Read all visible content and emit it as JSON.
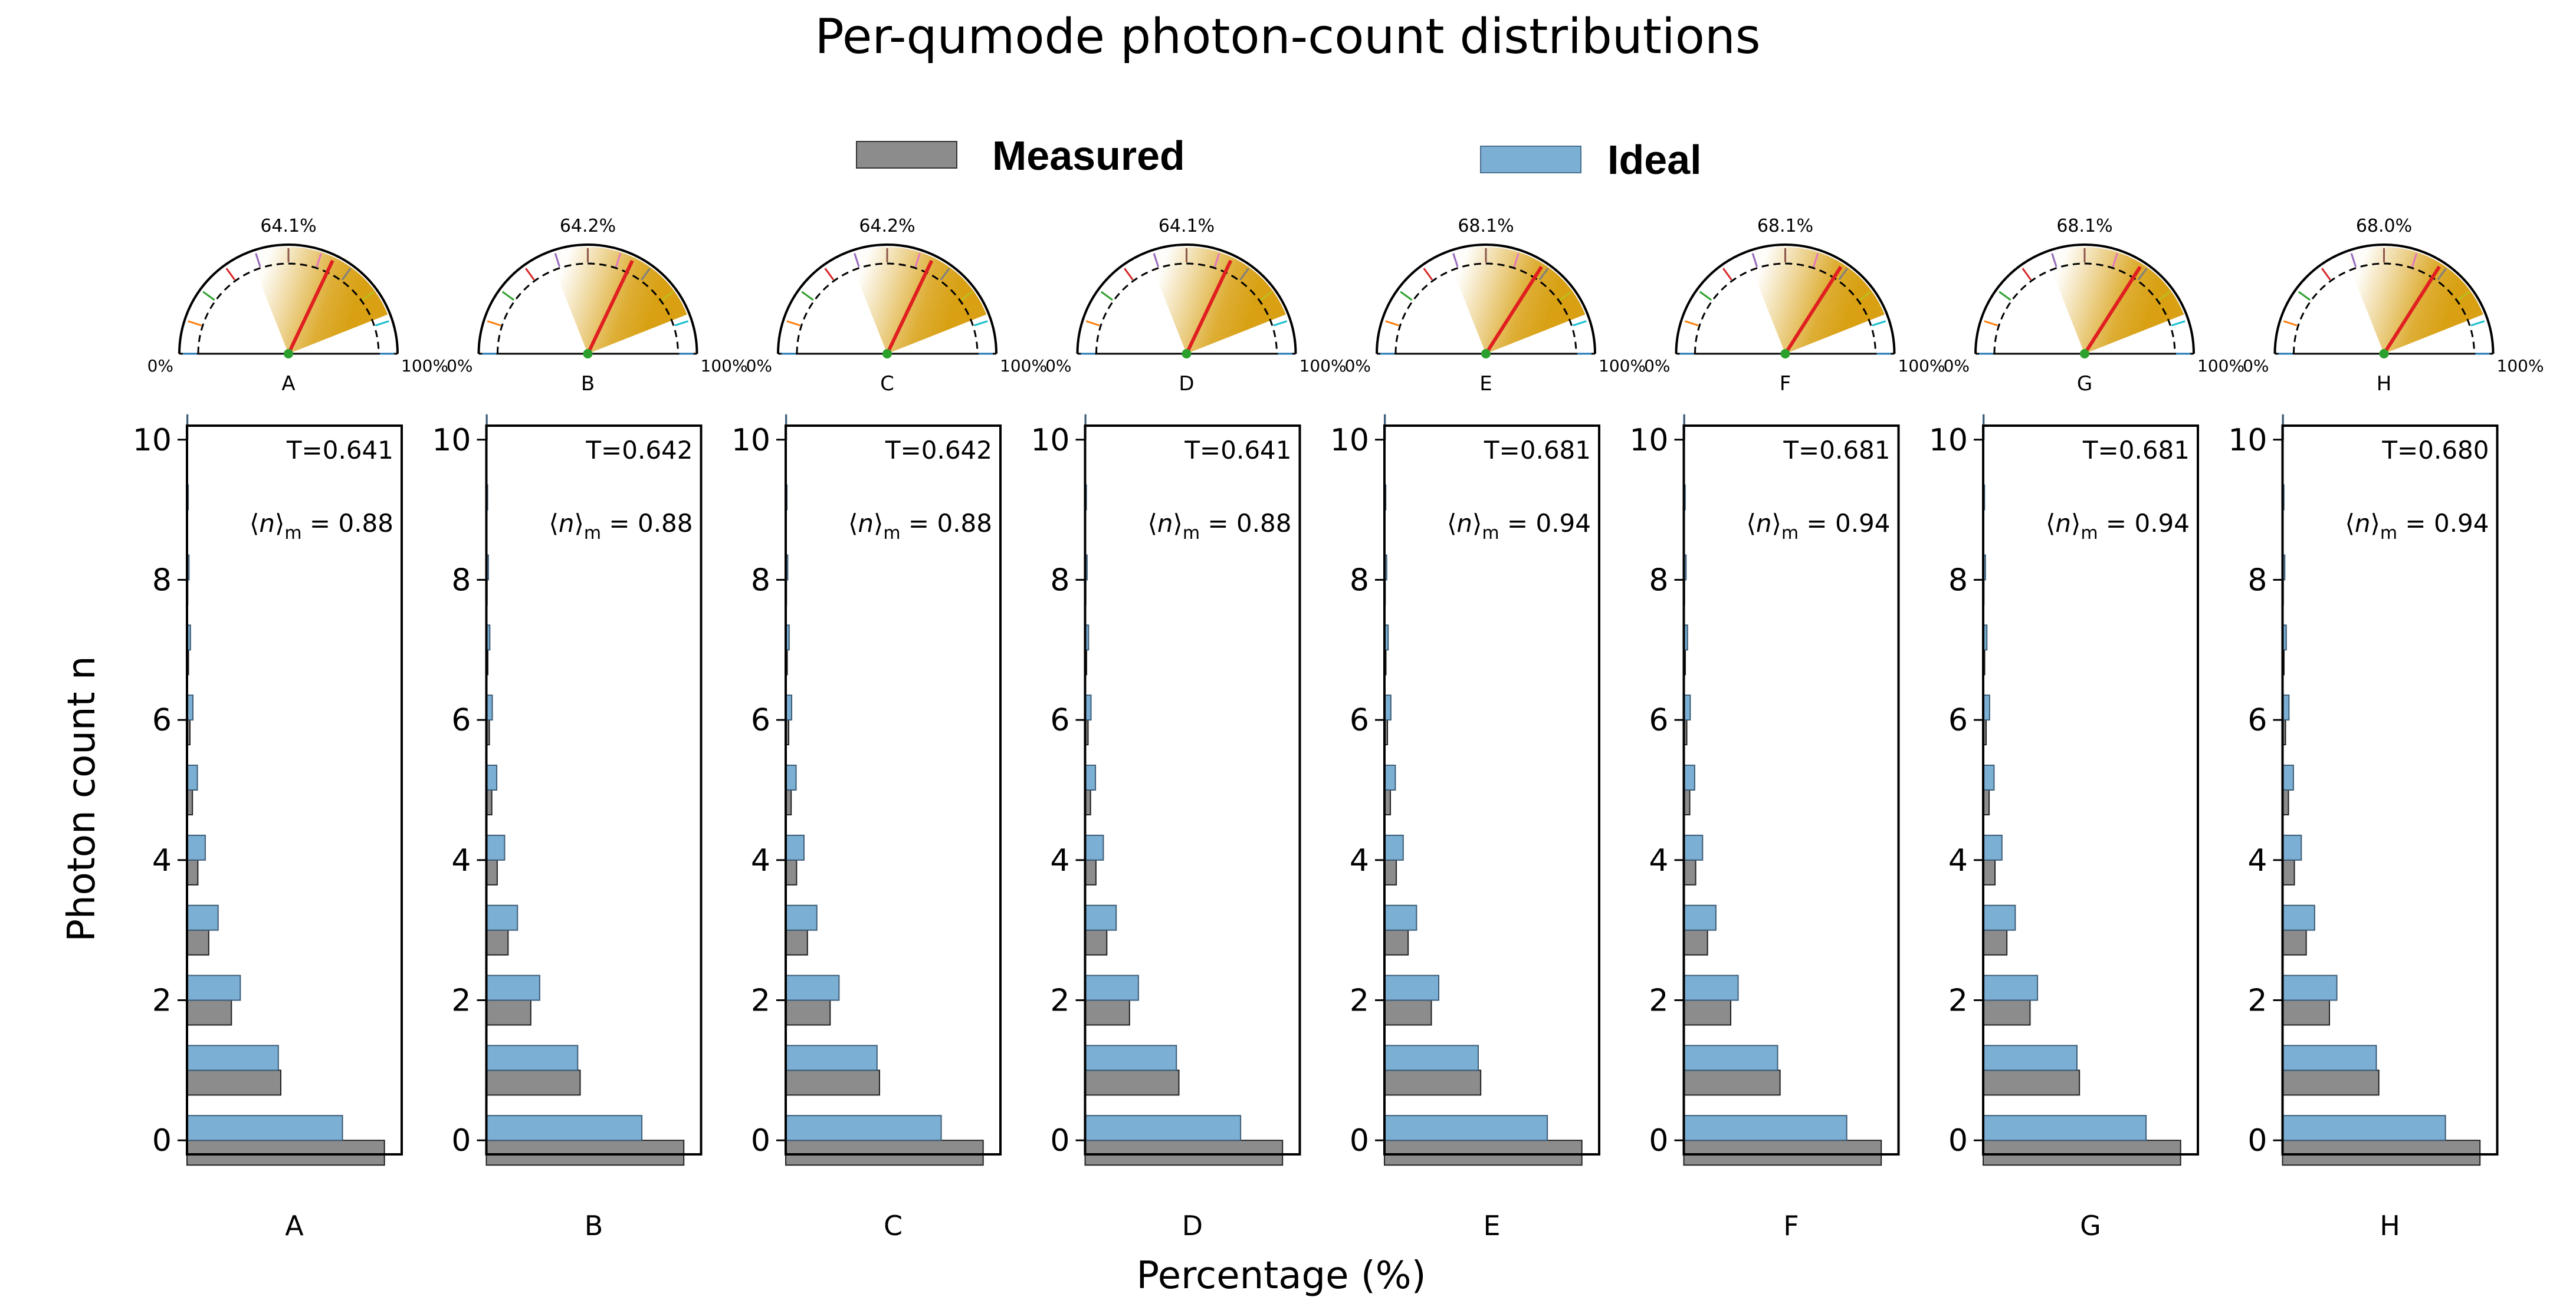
{
  "figure": {
    "title": "Per-qumode photon-count distributions",
    "ylabel": "Photon count n",
    "xlabel": "Percentage (%)"
  },
  "legend": {
    "measured_label": "Measured",
    "ideal_label": "Ideal"
  },
  "colors": {
    "measured": "#8c8c8c",
    "ideal": "#7bafd4",
    "gauge_fill": "#d8a012",
    "needle": "#e02020",
    "pivot": "#2ca02c"
  },
  "gauge_scale": {
    "min_label": "0%",
    "max_label": "100%"
  },
  "chart_data": [
    {
      "type": "bar",
      "qumode": "A",
      "gauge": {
        "value": 64.1,
        "label": "64.1%"
      },
      "T_label": "T=0.641",
      "n_mean_label": "0.88",
      "categories": [
        0,
        1,
        2,
        3,
        4,
        5,
        6,
        7,
        8,
        9,
        10
      ],
      "series": [
        {
          "name": "Measured",
          "values": [
            40.0,
            19.0,
            9.0,
            4.4,
            2.2,
            1.1,
            0.6,
            0.3,
            0.15,
            0.08,
            0.04
          ]
        },
        {
          "name": "Ideal",
          "values": [
            31.5,
            18.5,
            10.8,
            6.3,
            3.7,
            2.1,
            1.2,
            0.7,
            0.4,
            0.25,
            0.15
          ]
        }
      ],
      "ylim": [
        -0.2,
        10.2
      ],
      "yticks": [
        0,
        2,
        4,
        6,
        8,
        10
      ]
    },
    {
      "type": "bar",
      "qumode": "B",
      "gauge": {
        "value": 64.2,
        "label": "64.2%"
      },
      "T_label": "T=0.642",
      "n_mean_label": "0.88",
      "categories": [
        0,
        1,
        2,
        3,
        4,
        5,
        6,
        7,
        8,
        9,
        10
      ],
      "series": [
        {
          "name": "Measured",
          "values": [
            40.0,
            19.0,
            9.0,
            4.4,
            2.2,
            1.1,
            0.6,
            0.3,
            0.15,
            0.08,
            0.04
          ]
        },
        {
          "name": "Ideal",
          "values": [
            31.5,
            18.5,
            10.8,
            6.3,
            3.7,
            2.1,
            1.2,
            0.7,
            0.4,
            0.25,
            0.15
          ]
        }
      ],
      "ylim": [
        -0.2,
        10.2
      ],
      "yticks": [
        0,
        2,
        4,
        6,
        8,
        10
      ]
    },
    {
      "type": "bar",
      "qumode": "C",
      "gauge": {
        "value": 64.2,
        "label": "64.2%"
      },
      "T_label": "T=0.642",
      "n_mean_label": "0.88",
      "categories": [
        0,
        1,
        2,
        3,
        4,
        5,
        6,
        7,
        8,
        9,
        10
      ],
      "series": [
        {
          "name": "Measured",
          "values": [
            40.0,
            19.0,
            9.0,
            4.4,
            2.2,
            1.1,
            0.6,
            0.3,
            0.15,
            0.08,
            0.04
          ]
        },
        {
          "name": "Ideal",
          "values": [
            31.5,
            18.5,
            10.8,
            6.3,
            3.7,
            2.1,
            1.2,
            0.7,
            0.4,
            0.25,
            0.15
          ]
        }
      ],
      "ylim": [
        -0.2,
        10.2
      ],
      "yticks": [
        0,
        2,
        4,
        6,
        8,
        10
      ]
    },
    {
      "type": "bar",
      "qumode": "D",
      "gauge": {
        "value": 64.1,
        "label": "64.1%"
      },
      "T_label": "T=0.641",
      "n_mean_label": "0.88",
      "categories": [
        0,
        1,
        2,
        3,
        4,
        5,
        6,
        7,
        8,
        9,
        10
      ],
      "series": [
        {
          "name": "Measured",
          "values": [
            40.0,
            19.0,
            9.0,
            4.4,
            2.2,
            1.1,
            0.6,
            0.3,
            0.15,
            0.08,
            0.04
          ]
        },
        {
          "name": "Ideal",
          "values": [
            31.5,
            18.5,
            10.8,
            6.3,
            3.7,
            2.1,
            1.2,
            0.7,
            0.4,
            0.25,
            0.15
          ]
        }
      ],
      "ylim": [
        -0.2,
        10.2
      ],
      "yticks": [
        0,
        2,
        4,
        6,
        8,
        10
      ]
    },
    {
      "type": "bar",
      "qumode": "E",
      "gauge": {
        "value": 68.1,
        "label": "68.1%"
      },
      "T_label": "T=0.681",
      "n_mean_label": "0.94",
      "categories": [
        0,
        1,
        2,
        3,
        4,
        5,
        6,
        7,
        8,
        9,
        10
      ],
      "series": [
        {
          "name": "Measured",
          "values": [
            40.0,
            19.5,
            9.5,
            4.8,
            2.4,
            1.2,
            0.6,
            0.3,
            0.15,
            0.08,
            0.04
          ]
        },
        {
          "name": "Ideal",
          "values": [
            33.0,
            19.0,
            11.0,
            6.5,
            3.8,
            2.2,
            1.3,
            0.75,
            0.45,
            0.27,
            0.16
          ]
        }
      ],
      "ylim": [
        -0.2,
        10.2
      ],
      "yticks": [
        0,
        2,
        4,
        6,
        8,
        10
      ]
    },
    {
      "type": "bar",
      "qumode": "F",
      "gauge": {
        "value": 68.1,
        "label": "68.1%"
      },
      "T_label": "T=0.681",
      "n_mean_label": "0.94",
      "categories": [
        0,
        1,
        2,
        3,
        4,
        5,
        6,
        7,
        8,
        9,
        10
      ],
      "series": [
        {
          "name": "Measured",
          "values": [
            40.0,
            19.5,
            9.5,
            4.8,
            2.4,
            1.2,
            0.6,
            0.3,
            0.15,
            0.08,
            0.04
          ]
        },
        {
          "name": "Ideal",
          "values": [
            33.0,
            19.0,
            11.0,
            6.5,
            3.8,
            2.2,
            1.3,
            0.75,
            0.45,
            0.27,
            0.16
          ]
        }
      ],
      "ylim": [
        -0.2,
        10.2
      ],
      "yticks": [
        0,
        2,
        4,
        6,
        8,
        10
      ]
    },
    {
      "type": "bar",
      "qumode": "G",
      "gauge": {
        "value": 68.1,
        "label": "68.1%"
      },
      "T_label": "T=0.681",
      "n_mean_label": "0.94",
      "categories": [
        0,
        1,
        2,
        3,
        4,
        5,
        6,
        7,
        8,
        9,
        10
      ],
      "series": [
        {
          "name": "Measured",
          "values": [
            40.0,
            19.5,
            9.5,
            4.8,
            2.4,
            1.2,
            0.6,
            0.3,
            0.15,
            0.08,
            0.04
          ]
        },
        {
          "name": "Ideal",
          "values": [
            33.0,
            19.0,
            11.0,
            6.5,
            3.8,
            2.2,
            1.3,
            0.75,
            0.45,
            0.27,
            0.16
          ]
        }
      ],
      "ylim": [
        -0.2,
        10.2
      ],
      "yticks": [
        0,
        2,
        4,
        6,
        8,
        10
      ]
    },
    {
      "type": "bar",
      "qumode": "H",
      "gauge": {
        "value": 68.0,
        "label": "68.0%"
      },
      "T_label": "T=0.680",
      "n_mean_label": "0.94",
      "categories": [
        0,
        1,
        2,
        3,
        4,
        5,
        6,
        7,
        8,
        9,
        10
      ],
      "series": [
        {
          "name": "Measured",
          "values": [
            40.0,
            19.5,
            9.5,
            4.8,
            2.4,
            1.2,
            0.6,
            0.3,
            0.15,
            0.08,
            0.04
          ]
        },
        {
          "name": "Ideal",
          "values": [
            33.0,
            19.0,
            11.0,
            6.5,
            3.8,
            2.2,
            1.3,
            0.75,
            0.45,
            0.27,
            0.16
          ]
        }
      ],
      "ylim": [
        -0.2,
        10.2
      ],
      "yticks": [
        0,
        2,
        4,
        6,
        8,
        10
      ]
    }
  ]
}
